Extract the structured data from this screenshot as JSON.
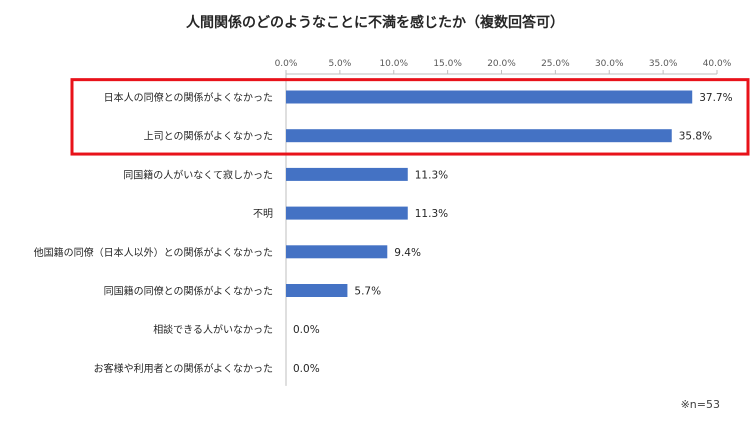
{
  "chart_data": {
    "type": "bar",
    "orientation": "horizontal",
    "title": "人間関係のどのようなことに不満を感じたか（複数回答可）",
    "categories": [
      "日本人の同僚との関係がよくなかった",
      "上司との関係がよくなかった",
      "同国籍の人がいなくて寂しかった",
      "不明",
      "他国籍の同僚（日本人以外）との関係がよくなかった",
      "同国籍の同僚との関係がよくなかった",
      "相談できる人がいなかった",
      "お客様や利用者との関係がよくなかった"
    ],
    "values": [
      37.7,
      35.8,
      11.3,
      11.3,
      9.4,
      5.7,
      0.0,
      0.0
    ],
    "value_labels": [
      "37.7%",
      "35.8%",
      "11.3%",
      "11.3%",
      "9.4%",
      "5.7%",
      "0.0%",
      "0.0%"
    ],
    "xlim": [
      0,
      40
    ],
    "ticks": [
      0,
      5,
      10,
      15,
      20,
      25,
      30,
      35,
      40
    ],
    "tick_labels": [
      "0.0%",
      "5.0%",
      "10.0%",
      "15.0%",
      "20.0%",
      "25.0%",
      "30.0%",
      "35.0%",
      "40.0%"
    ],
    "axis_position": "top",
    "grid": false,
    "highlight_categories": [
      0,
      1
    ],
    "colors": {
      "bar": "#4472C4",
      "highlight": "#E8121A",
      "axis": "#BFBFBF"
    },
    "note": "※n=53"
  }
}
